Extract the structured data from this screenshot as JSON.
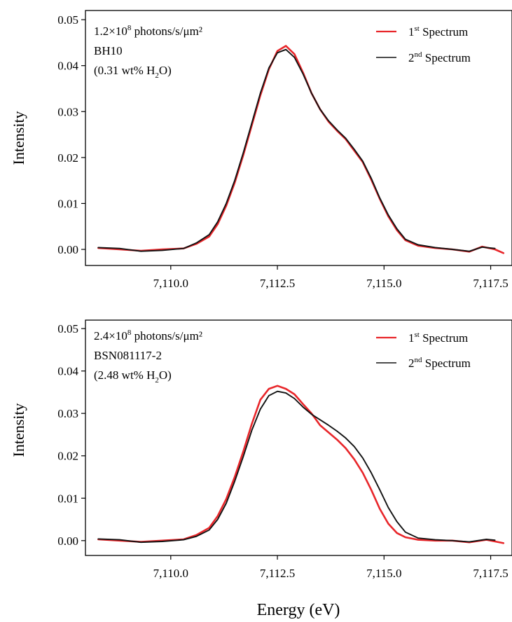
{
  "figure": {
    "xlabel": "Energy (eV)"
  },
  "chart_data": [
    {
      "type": "line",
      "ylabel": "Intensity",
      "xlabel": "",
      "xlim": [
        7108.0,
        7118.0
      ],
      "ylim": [
        -0.0035,
        0.052
      ],
      "x_ticks": [
        7110.0,
        7112.5,
        7115.0,
        7117.5
      ],
      "x_tick_labels": [
        "7,110.0",
        "7,112.5",
        "7,115.0",
        "7,117.5"
      ],
      "y_ticks": [
        0.0,
        0.01,
        0.02,
        0.03,
        0.04,
        0.05
      ],
      "y_tick_labels": [
        "0.00",
        "0.01",
        "0.02",
        "0.03",
        "0.04",
        "0.05"
      ],
      "grid": false,
      "legend_position": "top-right",
      "annotation": {
        "line1_base": "1.2×10",
        "line1_exp": "8",
        "line1_rest": " photons/s/μm²",
        "line2": "BH10",
        "line3_pre": "(0.31 wt% H",
        "line3_sub": "2",
        "line3_post": "O)"
      },
      "series": [
        {
          "name": "1st Spectrum",
          "legend_base": "1",
          "legend_sup": "st",
          "legend_rest": " Spectrum",
          "color": "#e8262a",
          "x": [
            7108.3,
            7108.8,
            7109.3,
            7109.8,
            7110.3,
            7110.6,
            7110.9,
            7111.1,
            7111.3,
            7111.5,
            7111.7,
            7111.9,
            7112.1,
            7112.3,
            7112.5,
            7112.7,
            7112.9,
            7113.1,
            7113.3,
            7113.5,
            7113.7,
            7113.9,
            7114.1,
            7114.3,
            7114.5,
            7114.7,
            7114.9,
            7115.1,
            7115.3,
            7115.5,
            7115.8,
            7116.2,
            7116.6,
            7117.0,
            7117.3,
            7117.6,
            7117.8
          ],
          "y": [
            0.0003,
            0.0,
            -0.0003,
            0.0,
            0.0002,
            0.0012,
            0.0028,
            0.0055,
            0.0095,
            0.0145,
            0.0205,
            0.027,
            0.0335,
            0.0392,
            0.0432,
            0.0443,
            0.0425,
            0.0385,
            0.034,
            0.0305,
            0.0278,
            0.0258,
            0.024,
            0.0215,
            0.019,
            0.0152,
            0.011,
            0.0072,
            0.0042,
            0.002,
            0.0008,
            0.0003,
            0.0,
            -0.0005,
            0.0006,
            0.0,
            -0.0008
          ]
        },
        {
          "name": "2nd Spectrum",
          "legend_base": "2",
          "legend_sup": "nd",
          "legend_rest": " Spectrum",
          "color": "#111111",
          "x": [
            7108.3,
            7108.8,
            7109.3,
            7109.8,
            7110.3,
            7110.6,
            7110.9,
            7111.1,
            7111.3,
            7111.5,
            7111.7,
            7111.9,
            7112.1,
            7112.3,
            7112.5,
            7112.7,
            7112.9,
            7113.1,
            7113.3,
            7113.5,
            7113.7,
            7113.9,
            7114.1,
            7114.3,
            7114.5,
            7114.7,
            7114.9,
            7115.1,
            7115.3,
            7115.5,
            7115.8,
            7116.2,
            7116.6,
            7117.0,
            7117.3,
            7117.6
          ],
          "y": [
            0.0004,
            0.0002,
            -0.0004,
            -0.0002,
            0.0002,
            0.0014,
            0.0032,
            0.006,
            0.01,
            0.015,
            0.021,
            0.0275,
            0.034,
            0.0395,
            0.0428,
            0.0435,
            0.0418,
            0.0382,
            0.034,
            0.0305,
            0.028,
            0.026,
            0.0242,
            0.0218,
            0.0192,
            0.0155,
            0.0112,
            0.0075,
            0.0045,
            0.0022,
            0.001,
            0.0004,
            0.0,
            -0.0004,
            0.0005,
            0.0002
          ]
        }
      ]
    },
    {
      "type": "line",
      "ylabel": "Intensity",
      "xlabel": "",
      "xlim": [
        7108.0,
        7118.0
      ],
      "ylim": [
        -0.0035,
        0.052
      ],
      "x_ticks": [
        7110.0,
        7112.5,
        7115.0,
        7117.5
      ],
      "x_tick_labels": [
        "7,110.0",
        "7,112.5",
        "7,115.0",
        "7,117.5"
      ],
      "y_ticks": [
        0.0,
        0.01,
        0.02,
        0.03,
        0.04,
        0.05
      ],
      "y_tick_labels": [
        "0.00",
        "0.01",
        "0.02",
        "0.03",
        "0.04",
        "0.05"
      ],
      "grid": false,
      "legend_position": "top-right",
      "annotation": {
        "line1_base": "2.4×10",
        "line1_exp": "8",
        "line1_rest": " photons/s/μm²",
        "line2": "BSN081117-2",
        "line3_pre": "(2.48 wt% H",
        "line3_sub": "2",
        "line3_post": "O)"
      },
      "series": [
        {
          "name": "1st Spectrum",
          "legend_base": "1",
          "legend_sup": "st",
          "legend_rest": " Spectrum",
          "color": "#e8262a",
          "x": [
            7108.3,
            7108.8,
            7109.3,
            7109.8,
            7110.3,
            7110.6,
            7110.9,
            7111.1,
            7111.3,
            7111.5,
            7111.7,
            7111.9,
            7112.1,
            7112.3,
            7112.5,
            7112.7,
            7112.9,
            7113.1,
            7113.3,
            7113.5,
            7113.7,
            7113.9,
            7114.1,
            7114.3,
            7114.5,
            7114.7,
            7114.9,
            7115.1,
            7115.3,
            7115.5,
            7115.8,
            7116.2,
            7116.6,
            7117.0,
            7117.4,
            7117.8
          ],
          "y": [
            0.0003,
            0.0,
            -0.0003,
            0.0,
            0.0003,
            0.0013,
            0.003,
            0.0058,
            0.0098,
            0.015,
            0.021,
            0.0275,
            0.0332,
            0.0358,
            0.0365,
            0.0358,
            0.0345,
            0.0322,
            0.03,
            0.0272,
            0.0255,
            0.0238,
            0.0218,
            0.0192,
            0.016,
            0.012,
            0.0075,
            0.004,
            0.0018,
            0.0008,
            0.0002,
            0.0,
            0.0,
            -0.0004,
            0.0002,
            -0.0006
          ]
        },
        {
          "name": "2nd Spectrum",
          "legend_base": "2",
          "legend_sup": "nd",
          "legend_rest": " Spectrum",
          "color": "#111111",
          "x": [
            7108.3,
            7108.8,
            7109.3,
            7109.8,
            7110.3,
            7110.6,
            7110.9,
            7111.1,
            7111.3,
            7111.5,
            7111.7,
            7111.9,
            7112.1,
            7112.3,
            7112.5,
            7112.7,
            7112.9,
            7113.1,
            7113.3,
            7113.5,
            7113.7,
            7113.9,
            7114.1,
            7114.3,
            7114.5,
            7114.7,
            7114.9,
            7115.1,
            7115.3,
            7115.5,
            7115.8,
            7116.2,
            7116.6,
            7117.0,
            7117.4,
            7117.6
          ],
          "y": [
            0.0004,
            0.0002,
            -0.0004,
            -0.0002,
            0.0002,
            0.001,
            0.0025,
            0.005,
            0.0088,
            0.014,
            0.0198,
            0.026,
            0.031,
            0.0342,
            0.0352,
            0.0348,
            0.0335,
            0.0315,
            0.0298,
            0.0285,
            0.0272,
            0.0258,
            0.0242,
            0.0222,
            0.0195,
            0.016,
            0.012,
            0.0078,
            0.0045,
            0.002,
            0.0006,
            0.0002,
            0.0,
            -0.0003,
            0.0003,
            0.0001
          ]
        }
      ]
    }
  ]
}
